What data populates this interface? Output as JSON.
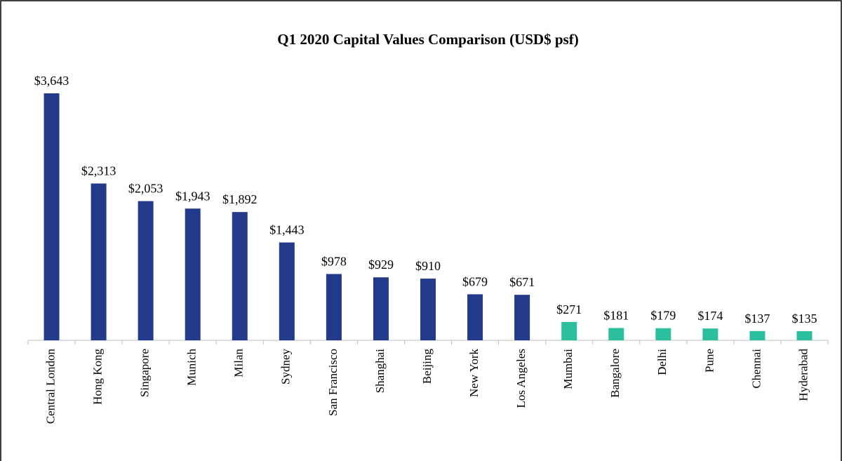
{
  "chart_data": {
    "type": "bar",
    "title": "Q1 2020 Capital Values Comparison (USD$ psf)",
    "categories": [
      "Central London",
      "Hong Kong",
      "Singapore",
      "Munich",
      "Milan",
      "Sydney",
      "San Francisco",
      "Shanghai",
      "Beijing",
      "New York",
      "Los Angeles",
      "Mumbai",
      "Bangalore",
      "Delhi",
      "Pune",
      "Chennai",
      "Hyderabad"
    ],
    "values": [
      3643,
      2313,
      2053,
      1943,
      1892,
      1443,
      978,
      929,
      910,
      679,
      671,
      271,
      181,
      179,
      174,
      137,
      135
    ],
    "value_labels": [
      "$3,643",
      "$2,313",
      "$2,053",
      "$1,943",
      "$1,892",
      "$1,443",
      "$978",
      "$929",
      "$910",
      "$679",
      "$671",
      "$271",
      "$181",
      "$179",
      "$174",
      "$137",
      "$135"
    ],
    "colors": [
      "#233a8a",
      "#233a8a",
      "#233a8a",
      "#233a8a",
      "#233a8a",
      "#233a8a",
      "#233a8a",
      "#233a8a",
      "#233a8a",
      "#233a8a",
      "#233a8a",
      "#2bbf9e",
      "#2bbf9e",
      "#2bbf9e",
      "#2bbf9e",
      "#2bbf9e",
      "#2bbf9e"
    ]
  }
}
